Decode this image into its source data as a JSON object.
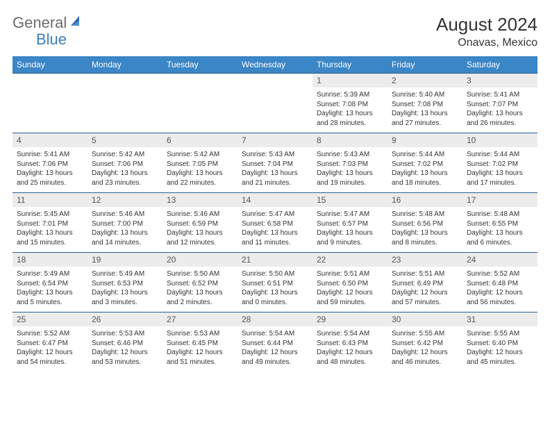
{
  "brand": {
    "part1": "General",
    "part2": "Blue"
  },
  "title": "August 2024",
  "location": "Onavas, Mexico",
  "colors": {
    "header_bg": "#3b86c6",
    "row_border": "#2b5f92",
    "daynum_bg": "#ececec",
    "brand_gray": "#6b6b6b",
    "brand_blue": "#3b7ec0"
  },
  "weekdays": [
    "Sunday",
    "Monday",
    "Tuesday",
    "Wednesday",
    "Thursday",
    "Friday",
    "Saturday"
  ],
  "weeks": [
    [
      {
        "n": "",
        "sr": "",
        "ss": "",
        "dl": ""
      },
      {
        "n": "",
        "sr": "",
        "ss": "",
        "dl": ""
      },
      {
        "n": "",
        "sr": "",
        "ss": "",
        "dl": ""
      },
      {
        "n": "",
        "sr": "",
        "ss": "",
        "dl": ""
      },
      {
        "n": "1",
        "sr": "Sunrise: 5:39 AM",
        "ss": "Sunset: 7:08 PM",
        "dl": "Daylight: 13 hours and 28 minutes."
      },
      {
        "n": "2",
        "sr": "Sunrise: 5:40 AM",
        "ss": "Sunset: 7:08 PM",
        "dl": "Daylight: 13 hours and 27 minutes."
      },
      {
        "n": "3",
        "sr": "Sunrise: 5:41 AM",
        "ss": "Sunset: 7:07 PM",
        "dl": "Daylight: 13 hours and 26 minutes."
      }
    ],
    [
      {
        "n": "4",
        "sr": "Sunrise: 5:41 AM",
        "ss": "Sunset: 7:06 PM",
        "dl": "Daylight: 13 hours and 25 minutes."
      },
      {
        "n": "5",
        "sr": "Sunrise: 5:42 AM",
        "ss": "Sunset: 7:06 PM",
        "dl": "Daylight: 13 hours and 23 minutes."
      },
      {
        "n": "6",
        "sr": "Sunrise: 5:42 AM",
        "ss": "Sunset: 7:05 PM",
        "dl": "Daylight: 13 hours and 22 minutes."
      },
      {
        "n": "7",
        "sr": "Sunrise: 5:43 AM",
        "ss": "Sunset: 7:04 PM",
        "dl": "Daylight: 13 hours and 21 minutes."
      },
      {
        "n": "8",
        "sr": "Sunrise: 5:43 AM",
        "ss": "Sunset: 7:03 PM",
        "dl": "Daylight: 13 hours and 19 minutes."
      },
      {
        "n": "9",
        "sr": "Sunrise: 5:44 AM",
        "ss": "Sunset: 7:02 PM",
        "dl": "Daylight: 13 hours and 18 minutes."
      },
      {
        "n": "10",
        "sr": "Sunrise: 5:44 AM",
        "ss": "Sunset: 7:02 PM",
        "dl": "Daylight: 13 hours and 17 minutes."
      }
    ],
    [
      {
        "n": "11",
        "sr": "Sunrise: 5:45 AM",
        "ss": "Sunset: 7:01 PM",
        "dl": "Daylight: 13 hours and 15 minutes."
      },
      {
        "n": "12",
        "sr": "Sunrise: 5:46 AM",
        "ss": "Sunset: 7:00 PM",
        "dl": "Daylight: 13 hours and 14 minutes."
      },
      {
        "n": "13",
        "sr": "Sunrise: 5:46 AM",
        "ss": "Sunset: 6:59 PM",
        "dl": "Daylight: 13 hours and 12 minutes."
      },
      {
        "n": "14",
        "sr": "Sunrise: 5:47 AM",
        "ss": "Sunset: 6:58 PM",
        "dl": "Daylight: 13 hours and 11 minutes."
      },
      {
        "n": "15",
        "sr": "Sunrise: 5:47 AM",
        "ss": "Sunset: 6:57 PM",
        "dl": "Daylight: 13 hours and 9 minutes."
      },
      {
        "n": "16",
        "sr": "Sunrise: 5:48 AM",
        "ss": "Sunset: 6:56 PM",
        "dl": "Daylight: 13 hours and 8 minutes."
      },
      {
        "n": "17",
        "sr": "Sunrise: 5:48 AM",
        "ss": "Sunset: 6:55 PM",
        "dl": "Daylight: 13 hours and 6 minutes."
      }
    ],
    [
      {
        "n": "18",
        "sr": "Sunrise: 5:49 AM",
        "ss": "Sunset: 6:54 PM",
        "dl": "Daylight: 13 hours and 5 minutes."
      },
      {
        "n": "19",
        "sr": "Sunrise: 5:49 AM",
        "ss": "Sunset: 6:53 PM",
        "dl": "Daylight: 13 hours and 3 minutes."
      },
      {
        "n": "20",
        "sr": "Sunrise: 5:50 AM",
        "ss": "Sunset: 6:52 PM",
        "dl": "Daylight: 13 hours and 2 minutes."
      },
      {
        "n": "21",
        "sr": "Sunrise: 5:50 AM",
        "ss": "Sunset: 6:51 PM",
        "dl": "Daylight: 13 hours and 0 minutes."
      },
      {
        "n": "22",
        "sr": "Sunrise: 5:51 AM",
        "ss": "Sunset: 6:50 PM",
        "dl": "Daylight: 12 hours and 59 minutes."
      },
      {
        "n": "23",
        "sr": "Sunrise: 5:51 AM",
        "ss": "Sunset: 6:49 PM",
        "dl": "Daylight: 12 hours and 57 minutes."
      },
      {
        "n": "24",
        "sr": "Sunrise: 5:52 AM",
        "ss": "Sunset: 6:48 PM",
        "dl": "Daylight: 12 hours and 56 minutes."
      }
    ],
    [
      {
        "n": "25",
        "sr": "Sunrise: 5:52 AM",
        "ss": "Sunset: 6:47 PM",
        "dl": "Daylight: 12 hours and 54 minutes."
      },
      {
        "n": "26",
        "sr": "Sunrise: 5:53 AM",
        "ss": "Sunset: 6:46 PM",
        "dl": "Daylight: 12 hours and 53 minutes."
      },
      {
        "n": "27",
        "sr": "Sunrise: 5:53 AM",
        "ss": "Sunset: 6:45 PM",
        "dl": "Daylight: 12 hours and 51 minutes."
      },
      {
        "n": "28",
        "sr": "Sunrise: 5:54 AM",
        "ss": "Sunset: 6:44 PM",
        "dl": "Daylight: 12 hours and 49 minutes."
      },
      {
        "n": "29",
        "sr": "Sunrise: 5:54 AM",
        "ss": "Sunset: 6:43 PM",
        "dl": "Daylight: 12 hours and 48 minutes."
      },
      {
        "n": "30",
        "sr": "Sunrise: 5:55 AM",
        "ss": "Sunset: 6:42 PM",
        "dl": "Daylight: 12 hours and 46 minutes."
      },
      {
        "n": "31",
        "sr": "Sunrise: 5:55 AM",
        "ss": "Sunset: 6:40 PM",
        "dl": "Daylight: 12 hours and 45 minutes."
      }
    ]
  ]
}
